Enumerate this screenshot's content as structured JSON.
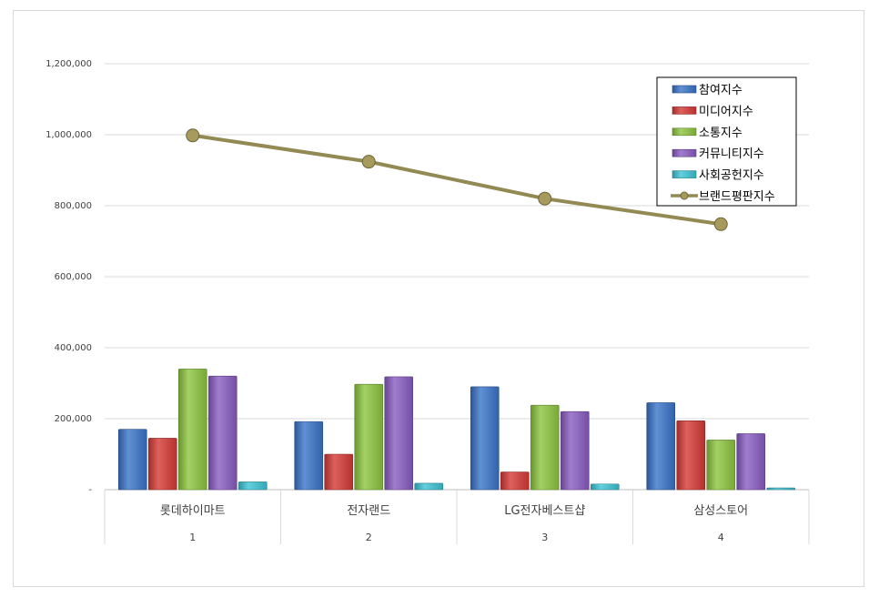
{
  "chart_data": {
    "type": "bar+line",
    "categories": [
      "롯데하이마트",
      "전자랜드",
      "LG전자베스트샵",
      "삼성스토어"
    ],
    "group_labels": [
      "1",
      "2",
      "3",
      "4"
    ],
    "series": [
      {
        "name": "참여지수",
        "kind": "bar",
        "color": "#3a74c9",
        "values": [
          170000,
          192000,
          290000,
          245000
        ]
      },
      {
        "name": "미디어지수",
        "kind": "bar",
        "color": "#d63a36",
        "values": [
          145000,
          100000,
          50000,
          194000
        ]
      },
      {
        "name": "소통지수",
        "kind": "bar",
        "color": "#8dc63f",
        "values": [
          340000,
          297000,
          238000,
          140000
        ]
      },
      {
        "name": "커뮤니티지수",
        "kind": "bar",
        "color": "#8a5cc2",
        "values": [
          320000,
          318000,
          220000,
          158000
        ]
      },
      {
        "name": "사회공헌지수",
        "kind": "bar",
        "color": "#3dc4d6",
        "values": [
          22000,
          18000,
          16000,
          5000
        ]
      },
      {
        "name": "브랜드평판지수",
        "kind": "line",
        "color": "#938953",
        "values": [
          998000,
          924000,
          820000,
          748000
        ]
      }
    ],
    "y_ticks": [
      "-",
      "200,000",
      "400,000",
      "600,000",
      "800,000",
      "1,000,000",
      "1,200,000"
    ],
    "ylim": [
      0,
      1200000
    ],
    "grid": true,
    "legend_position": "top-right"
  }
}
